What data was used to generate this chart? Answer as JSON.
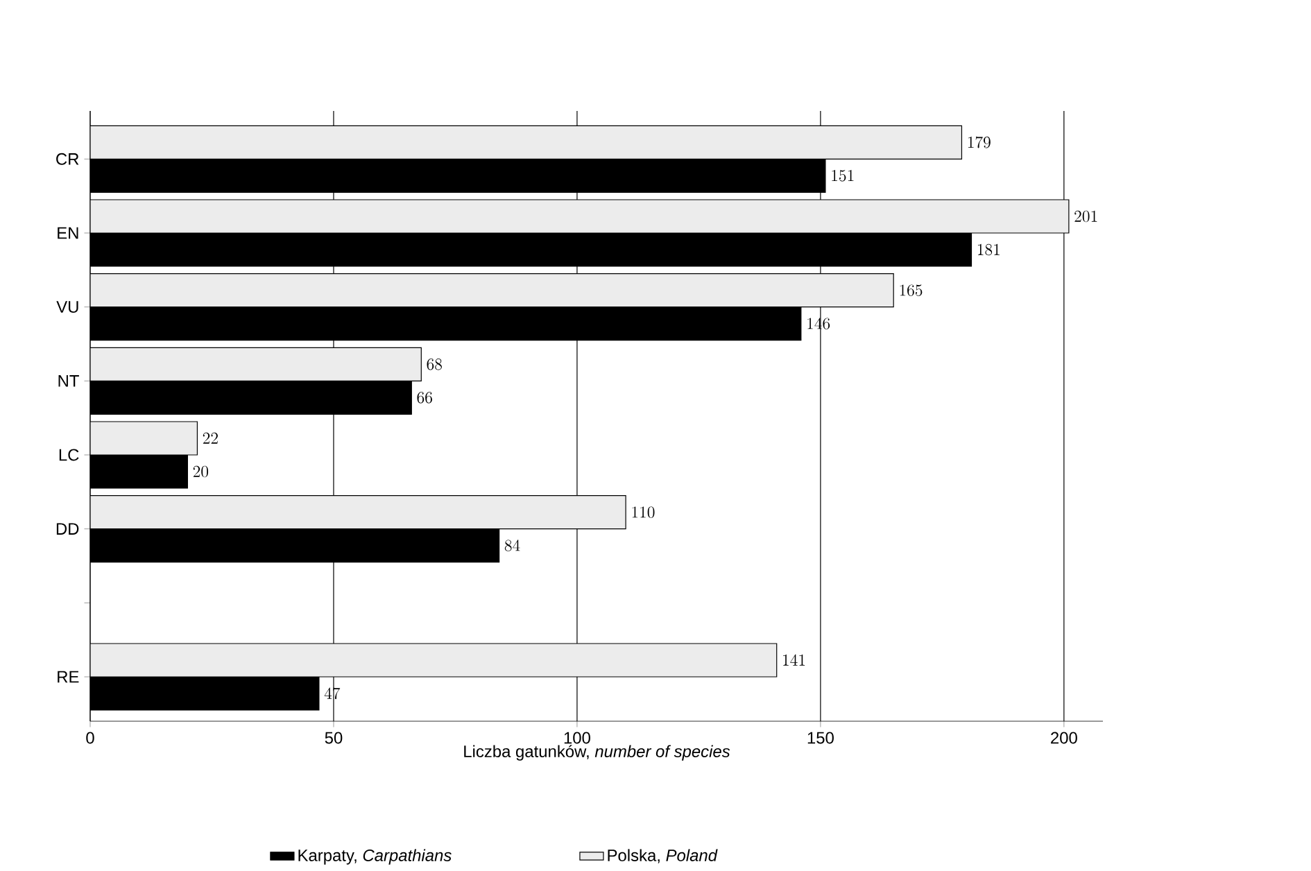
{
  "chart_data": {
    "type": "bar",
    "orientation": "horizontal",
    "categories": [
      "CR",
      "EN",
      "VU",
      "NT",
      "LC",
      "DD",
      null,
      "RE"
    ],
    "series": [
      {
        "name": "Karpaty, *Carpathians*",
        "color": "#000000",
        "values": [
          151,
          181,
          146,
          66,
          20,
          84,
          null,
          47
        ]
      },
      {
        "name": "Polska, *Poland*",
        "color": "#ececec",
        "values": [
          179,
          201,
          165,
          68,
          22,
          110,
          null,
          141
        ]
      }
    ],
    "xlabel": "Liczba gatunków, *number of species*",
    "xlim": [
      0,
      208
    ],
    "xticks": [
      0,
      50,
      100,
      150,
      200
    ],
    "grid": "x",
    "legend": "bottom",
    "data_labels": true
  }
}
